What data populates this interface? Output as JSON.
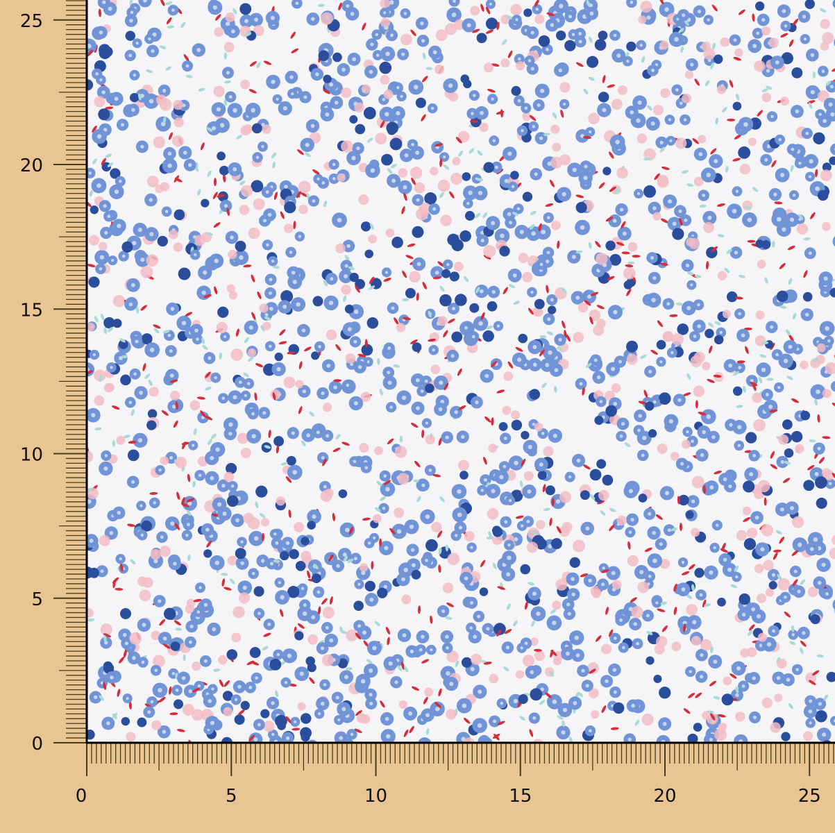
{
  "ruler": {
    "unit_range": [
      0,
      25
    ],
    "major_step": 5,
    "x_labels": [
      "0",
      "5",
      "10",
      "15",
      "20",
      "25"
    ],
    "y_labels": [
      "0",
      "5",
      "10",
      "15",
      "20",
      "25"
    ]
  },
  "colors": {
    "background": "#e8c592",
    "fabric": "#f5f5f8",
    "flower_blue": "#7194d6",
    "flower_dark_blue": "#2a4e9c",
    "flower_pink": "#f2bcc4",
    "leaf_red": "#d42e3a",
    "leaf_mint": "#a9dad6"
  }
}
